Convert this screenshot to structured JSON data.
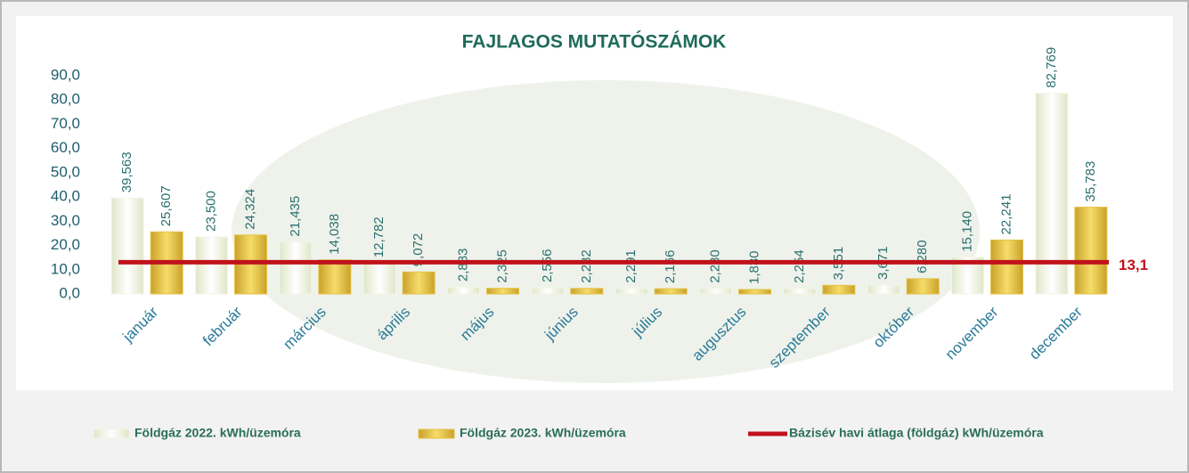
{
  "chart_data": {
    "type": "bar",
    "title": "FAJLAGOS MUTATÓSZÁMOK",
    "categories": [
      "január",
      "február",
      "március",
      "április",
      "május",
      "június",
      "július",
      "augusztus",
      "szeptember",
      "október",
      "november",
      "december"
    ],
    "series": [
      {
        "name": "Földgáz 2022. kWh/üzemóra",
        "color": "#f3f6e6",
        "values": [
          39.563,
          23.5,
          21.435,
          12.782,
          2.883,
          2.556,
          2.291,
          2.28,
          2.254,
          3.671,
          15.14,
          82.769
        ],
        "value_labels": [
          "39,563",
          "23,500",
          "21,435",
          "12,782",
          "2,883",
          "2,556",
          "2,291",
          "2,280",
          "2,254",
          "3,671",
          "15,140",
          "82,769"
        ]
      },
      {
        "name": "Földgáz 2023. kWh/üzemóra",
        "color": "#e6c246",
        "values": [
          25.607,
          24.324,
          14.038,
          9.072,
          2.325,
          2.282,
          2.166,
          1.83,
          3.551,
          6.28,
          22.241,
          35.783
        ],
        "value_labels": [
          "25,607",
          "24,324",
          "14,038",
          "9,072",
          "2,325",
          "2,282",
          "2,166",
          "1,830",
          "3,551",
          "6,280",
          "22,241",
          "35,783"
        ]
      }
    ],
    "baseline": {
      "name": "Bázisév havi átlaga (földgáz) kWh/üzemóra",
      "color": "#c0121c",
      "value": 13.1,
      "label": "13,1"
    },
    "ylim": [
      0,
      90
    ],
    "yticks": [
      {
        "value": 0,
        "label": "0,0"
      },
      {
        "value": 10,
        "label": "10,0"
      },
      {
        "value": 20,
        "label": "20,0"
      },
      {
        "value": 30,
        "label": "30,0"
      },
      {
        "value": 40,
        "label": "40,0"
      },
      {
        "value": 50,
        "label": "50,0"
      },
      {
        "value": 60,
        "label": "60,0"
      },
      {
        "value": 70,
        "label": "70,0"
      },
      {
        "value": 80,
        "label": "80,0"
      },
      {
        "value": 90,
        "label": "90,0"
      }
    ]
  }
}
